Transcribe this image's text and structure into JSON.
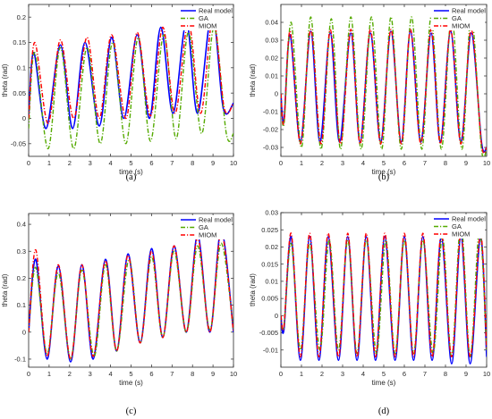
{
  "colors": {
    "real": "#0000ff",
    "ga": "#55aa00",
    "miom": "#ff0000"
  },
  "chart_data": [
    {
      "panel": "(a)",
      "type": "line",
      "xlabel": "time (s)",
      "ylabel": "theta (rad)",
      "xlim": [
        0,
        10
      ],
      "ylim": [
        -0.075,
        0.225
      ],
      "xticks": [
        "0",
        "1",
        "2",
        "3",
        "4",
        "5",
        "6",
        "7",
        "8",
        "9",
        "10"
      ],
      "yticks": [
        -0.05,
        0,
        0.05,
        0.1,
        0.15,
        0.2
      ],
      "ytick_labels": [
        "-0.05",
        "0",
        "0.05",
        "0.1",
        "0.15",
        "0.2"
      ],
      "legend": [
        "Real model",
        "GA",
        "MIOM"
      ],
      "legend_position": "top-right",
      "series": [
        {
          "name": "Real model",
          "style": "solid",
          "x": [
            0,
            0.25,
            0.85,
            1.55,
            2.15,
            2.75,
            3.45,
            4.05,
            4.65,
            5.3,
            5.9,
            6.45,
            7.05,
            7.7,
            8.25,
            8.95,
            9.5,
            10
          ],
          "y": [
            0,
            0.13,
            -0.02,
            0.145,
            -0.02,
            0.15,
            -0.015,
            0.16,
            0.0,
            0.165,
            0.0,
            0.18,
            0.01,
            0.19,
            0.01,
            0.21,
            0.02,
            0.03
          ]
        },
        {
          "name": "GA",
          "style": "dashdot",
          "x": [
            0,
            0.3,
            0.95,
            1.55,
            2.2,
            2.85,
            3.5,
            4.1,
            4.75,
            5.35,
            5.95,
            6.6,
            7.2,
            7.8,
            8.45,
            9.05,
            9.65,
            10
          ],
          "y": [
            -0.02,
            0.13,
            -0.06,
            0.14,
            -0.06,
            0.14,
            -0.05,
            0.15,
            -0.05,
            0.16,
            -0.045,
            0.165,
            -0.04,
            0.17,
            -0.03,
            0.18,
            -0.03,
            -0.03
          ]
        },
        {
          "name": "MIOM",
          "style": "dashdot",
          "x": [
            0,
            0.3,
            0.95,
            1.55,
            2.2,
            2.85,
            3.45,
            4.05,
            4.75,
            5.3,
            5.95,
            6.55,
            7.15,
            7.8,
            8.4,
            9.0,
            9.55,
            10
          ],
          "y": [
            0,
            0.15,
            -0.01,
            0.155,
            0.0,
            0.16,
            0.0,
            0.165,
            0.0,
            0.17,
            0.005,
            0.18,
            0.01,
            0.19,
            0.01,
            0.2,
            0.02,
            0.03
          ]
        }
      ]
    },
    {
      "panel": "(b)",
      "type": "line",
      "xlabel": "time (s)",
      "ylabel": "theta (rad)",
      "xlim": [
        0,
        10
      ],
      "ylim": [
        -0.035,
        0.05
      ],
      "xticks": [
        "0",
        "1",
        "2",
        "3",
        "4",
        "5",
        "6",
        "7",
        "8",
        "9",
        "10"
      ],
      "yticks": [
        -0.03,
        -0.02,
        -0.01,
        0,
        0.01,
        0.02,
        0.03,
        0.04
      ],
      "ytick_labels": [
        "-0.03",
        "-0.02",
        "-0.01",
        "0",
        "0.01",
        "0.02",
        "0.03",
        "0.04"
      ],
      "legend": [
        "Real model",
        "GA",
        "MIOM"
      ],
      "legend_position": "top-right",
      "series": [
        {
          "name": "Real model",
          "style": "solid",
          "x": [
            0,
            0.15,
            0.45,
            0.95,
            1.45,
            1.9,
            2.4,
            2.85,
            3.4,
            3.85,
            4.35,
            4.85,
            5.35,
            5.85,
            6.3,
            6.8,
            7.3,
            7.75,
            8.25,
            8.75,
            9.25,
            9.75,
            10
          ],
          "y": [
            0,
            -0.015,
            0.033,
            -0.027,
            0.035,
            -0.027,
            0.034,
            -0.027,
            0.034,
            -0.027,
            0.034,
            -0.027,
            0.035,
            -0.027,
            0.035,
            -0.027,
            0.034,
            -0.027,
            0.035,
            -0.027,
            0.034,
            -0.027,
            -0.03
          ]
        },
        {
          "name": "GA",
          "style": "dashdot",
          "x": [
            0,
            0.15,
            0.5,
            1.0,
            1.45,
            1.95,
            2.45,
            2.9,
            3.4,
            3.9,
            4.4,
            4.9,
            5.35,
            5.85,
            6.35,
            6.85,
            7.3,
            7.8,
            8.3,
            8.8,
            9.25,
            9.75,
            10
          ],
          "y": [
            0,
            -0.017,
            0.04,
            -0.03,
            0.043,
            -0.031,
            0.042,
            -0.031,
            0.043,
            -0.031,
            0.043,
            -0.031,
            0.043,
            -0.031,
            0.043,
            -0.031,
            0.043,
            -0.031,
            0.044,
            -0.031,
            0.044,
            -0.031,
            -0.03
          ]
        },
        {
          "name": "MIOM",
          "style": "dashdot",
          "x": [
            0,
            0.15,
            0.45,
            0.95,
            1.45,
            1.95,
            2.4,
            2.9,
            3.4,
            3.85,
            4.35,
            4.85,
            5.35,
            5.85,
            6.3,
            6.8,
            7.3,
            7.75,
            8.25,
            8.75,
            9.25,
            9.75,
            10
          ],
          "y": [
            0,
            -0.016,
            0.035,
            -0.028,
            0.036,
            -0.028,
            0.036,
            -0.028,
            0.036,
            -0.028,
            0.036,
            -0.028,
            0.036,
            -0.028,
            0.036,
            -0.028,
            0.036,
            -0.028,
            0.036,
            -0.028,
            0.036,
            -0.028,
            -0.03
          ]
        }
      ]
    },
    {
      "panel": "(c)",
      "type": "line",
      "xlabel": "time (s)",
      "ylabel": "theta (rad)",
      "xlim": [
        0,
        10
      ],
      "ylim": [
        -0.13,
        0.44
      ],
      "xticks": [
        "0",
        "1",
        "2",
        "3",
        "4",
        "5",
        "6",
        "7",
        "8",
        "9",
        "10"
      ],
      "yticks": [
        -0.1,
        0,
        0.1,
        0.2,
        0.3,
        0.4
      ],
      "ytick_labels": [
        "-0.1",
        "0",
        "0.1",
        "0.2",
        "0.3",
        "0.4"
      ],
      "legend": [
        "Real model",
        "GA",
        "MIOM"
      ],
      "legend_position": "top-right",
      "series": [
        {
          "name": "Real model",
          "style": "solid",
          "x": [
            0,
            0.35,
            0.9,
            1.45,
            2.05,
            2.6,
            3.15,
            3.75,
            4.3,
            4.85,
            5.45,
            6.0,
            6.55,
            7.1,
            7.7,
            8.25,
            8.85,
            9.4,
            10
          ],
          "y": [
            0,
            0.27,
            -0.1,
            0.245,
            -0.11,
            0.25,
            -0.1,
            0.27,
            -0.07,
            0.29,
            -0.04,
            0.31,
            -0.02,
            0.32,
            0.0,
            0.36,
            0.0,
            0.38,
            0.0
          ]
        },
        {
          "name": "GA",
          "style": "dashdot",
          "x": [
            0,
            0.35,
            0.9,
            1.45,
            2.05,
            2.6,
            3.2,
            3.75,
            4.3,
            4.9,
            5.45,
            6.0,
            6.55,
            7.1,
            7.7,
            8.25,
            8.85,
            9.4,
            10
          ],
          "y": [
            0,
            0.24,
            -0.08,
            0.22,
            -0.1,
            0.23,
            -0.09,
            0.25,
            -0.07,
            0.27,
            -0.04,
            0.28,
            -0.02,
            0.3,
            0.0,
            0.32,
            0.01,
            0.33,
            0.01
          ]
        },
        {
          "name": "MIOM",
          "style": "dashdot",
          "x": [
            0,
            0.35,
            0.9,
            1.45,
            2.05,
            2.6,
            3.15,
            3.75,
            4.3,
            4.85,
            5.45,
            6.0,
            6.55,
            7.1,
            7.7,
            8.25,
            8.85,
            9.4,
            10
          ],
          "y": [
            0,
            0.305,
            -0.09,
            0.25,
            -0.1,
            0.25,
            -0.09,
            0.265,
            -0.07,
            0.285,
            -0.04,
            0.3,
            -0.02,
            0.32,
            0.0,
            0.35,
            0.0,
            0.37,
            0.0
          ]
        }
      ]
    },
    {
      "panel": "(d)",
      "type": "line",
      "xlabel": "time (s)",
      "ylabel": "theta (rad)",
      "xlim": [
        0,
        10
      ],
      "ylim": [
        -0.015,
        0.03
      ],
      "xticks": [
        "0",
        "1",
        "2",
        "3",
        "4",
        "5",
        "6",
        "7",
        "8",
        "9",
        "10"
      ],
      "yticks": [
        -0.01,
        -0.005,
        0,
        0.005,
        0.01,
        0.015,
        0.02,
        0.025,
        0.03
      ],
      "ytick_labels": [
        "-0.01",
        "-0.005",
        "0",
        "0.005",
        "0.01",
        "0.015",
        "0.02",
        "0.025",
        "0.03"
      ],
      "legend": [
        "Real model",
        "GA",
        "MIOM"
      ],
      "legend_position": "top-right",
      "series": [
        {
          "name": "Real model",
          "style": "solid",
          "x": [
            0,
            0.15,
            0.5,
            0.95,
            1.4,
            1.85,
            2.3,
            2.8,
            3.25,
            3.7,
            4.15,
            4.6,
            5.05,
            5.55,
            6.0,
            6.45,
            6.9,
            7.35,
            7.8,
            8.3,
            8.75,
            9.2,
            9.7,
            10
          ],
          "y": [
            0,
            -0.004,
            0.023,
            -0.013,
            0.023,
            -0.013,
            0.023,
            -0.013,
            0.023,
            -0.013,
            0.023,
            -0.013,
            0.023,
            -0.013,
            0.023,
            -0.013,
            0.023,
            -0.013,
            0.023,
            -0.014,
            0.023,
            -0.014,
            0.023,
            -0.012
          ]
        },
        {
          "name": "GA",
          "style": "dashdot",
          "x": [
            0,
            0.15,
            0.5,
            0.95,
            1.4,
            1.9,
            2.35,
            2.8,
            3.25,
            3.7,
            4.15,
            4.65,
            5.1,
            5.55,
            6.0,
            6.45,
            6.9,
            7.4,
            7.85,
            8.3,
            8.75,
            9.2,
            9.65,
            10
          ],
          "y": [
            0,
            -0.003,
            0.021,
            -0.01,
            0.021,
            -0.01,
            0.022,
            -0.01,
            0.022,
            -0.011,
            0.022,
            -0.011,
            0.022,
            -0.011,
            0.022,
            -0.011,
            0.022,
            -0.011,
            0.023,
            -0.012,
            0.027,
            -0.012,
            0.025,
            -0.01
          ]
        },
        {
          "name": "MIOM",
          "style": "dashdot",
          "x": [
            0,
            0.15,
            0.5,
            0.95,
            1.4,
            1.85,
            2.3,
            2.8,
            3.25,
            3.7,
            4.15,
            4.6,
            5.05,
            5.55,
            6.0,
            6.45,
            6.9,
            7.35,
            7.8,
            8.3,
            8.75,
            9.2,
            9.7,
            10
          ],
          "y": [
            0,
            -0.003,
            0.024,
            -0.012,
            0.024,
            -0.012,
            0.024,
            -0.012,
            0.024,
            -0.012,
            0.024,
            -0.012,
            0.024,
            -0.012,
            0.024,
            -0.012,
            0.024,
            -0.012,
            0.024,
            -0.012,
            0.024,
            -0.012,
            0.024,
            -0.01
          ]
        }
      ]
    }
  ]
}
